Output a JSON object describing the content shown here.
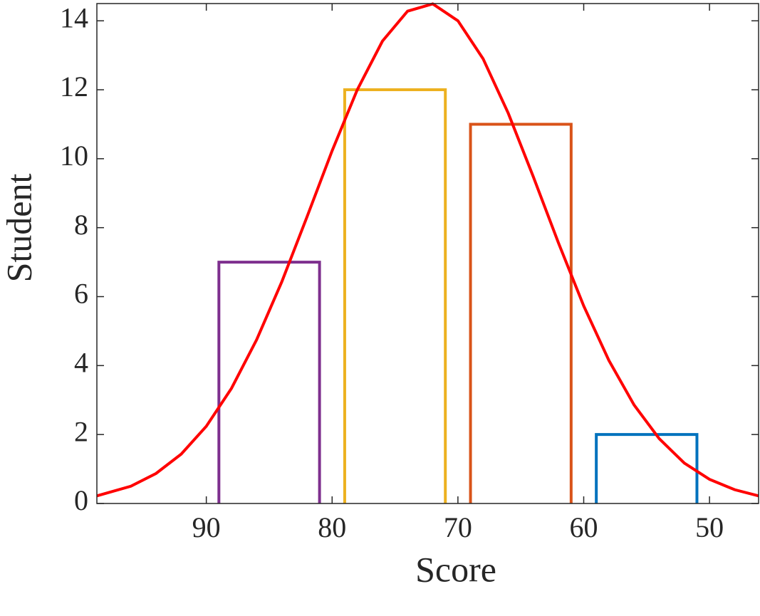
{
  "chart_data": {
    "type": "bar",
    "xlabel": "Score",
    "ylabel": "Student",
    "xlim": [
      98.7,
      46.1
    ],
    "xticks": [
      90,
      80,
      70,
      60,
      50
    ],
    "ylim": [
      0,
      14.5
    ],
    "yticks": [
      0,
      2,
      4,
      6,
      8,
      10,
      12,
      14
    ],
    "bars": {
      "x_start": [
        89,
        79,
        69,
        59
      ],
      "x_end": [
        81,
        71,
        61,
        51
      ],
      "values": [
        7,
        12,
        11,
        2
      ],
      "colors": [
        "#7e2f8e",
        "#edb120",
        "#d95319",
        "#0072bd"
      ]
    },
    "curve": {
      "type": "line",
      "color": "#ff0000",
      "x": [
        98.7,
        96,
        94,
        92,
        90,
        88,
        86,
        84,
        82,
        80,
        78,
        76,
        74,
        72,
        70,
        68,
        66,
        64,
        62,
        60,
        58,
        56,
        54,
        52,
        50,
        48,
        46.1
      ],
      "values": [
        0.22,
        0.5,
        0.87,
        1.43,
        2.24,
        3.34,
        4.75,
        6.43,
        8.31,
        10.23,
        12.0,
        13.41,
        14.28,
        14.49,
        14.0,
        12.9,
        11.32,
        9.47,
        7.55,
        5.73,
        4.15,
        2.86,
        1.88,
        1.17,
        0.7,
        0.4,
        0.22
      ]
    }
  }
}
